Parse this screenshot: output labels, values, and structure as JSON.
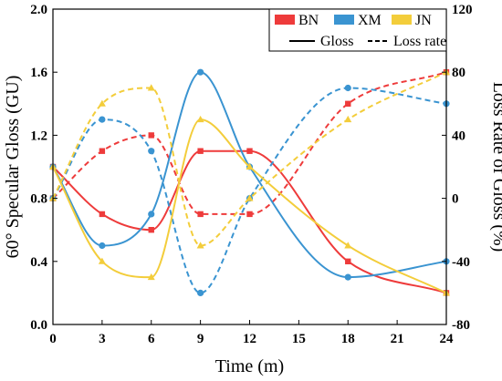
{
  "chart_data": {
    "type": "line",
    "title": "",
    "xlabel": "Time (m)",
    "ylabel_left": "60° Specular Gloss (GU)",
    "ylabel_right": "Loss Rate of Gloss (%)",
    "x_ticks": [
      0,
      3,
      6,
      9,
      12,
      15,
      18,
      21,
      24
    ],
    "x_tick_labels": [
      "0",
      "3",
      "6",
      "9",
      "12",
      "15",
      "18",
      "21",
      "24"
    ],
    "xlim": [
      0,
      24
    ],
    "y_left_ticks": [
      0.0,
      0.4,
      0.8,
      1.2,
      1.6,
      2.0
    ],
    "y_left_tick_labels": [
      "0.0",
      "0.4",
      "0.8",
      "1.2",
      "1.6",
      "2.0"
    ],
    "ylim_left": [
      0,
      2.0
    ],
    "y_right_ticks": [
      -80,
      -40,
      0,
      40,
      80,
      120
    ],
    "y_right_tick_labels": [
      "-80",
      "-40",
      "0",
      "40",
      "80",
      "120"
    ],
    "ylim_right": [
      -80,
      120
    ],
    "x_points": [
      0,
      3,
      6,
      9,
      12,
      18,
      24
    ],
    "series": [
      {
        "name": "BN",
        "color": "#ee3b3b",
        "marker": "square",
        "gloss": [
          1.0,
          0.7,
          0.6,
          1.1,
          1.1,
          0.4,
          0.2
        ],
        "loss_rate": [
          0,
          30,
          40,
          -10,
          -10,
          60,
          80
        ]
      },
      {
        "name": "XM",
        "color": "#3a94d1",
        "marker": "circle",
        "gloss": [
          1.0,
          0.5,
          0.7,
          1.6,
          1.0,
          0.3,
          0.4
        ],
        "loss_rate": [
          0,
          50,
          30,
          -60,
          0,
          70,
          60
        ]
      },
      {
        "name": "JN",
        "color": "#f3cd3b",
        "marker": "triangle",
        "gloss": [
          1.0,
          0.4,
          0.3,
          1.3,
          1.0,
          0.5,
          0.2
        ],
        "loss_rate": [
          0,
          60,
          70,
          -30,
          0,
          50,
          80
        ]
      }
    ],
    "legend": {
      "position": "top-right",
      "series_names": [
        "BN",
        "XM",
        "JN"
      ],
      "style_labels": {
        "solid": "Gloss",
        "dashed": "Loss rate"
      }
    },
    "grid": false
  }
}
